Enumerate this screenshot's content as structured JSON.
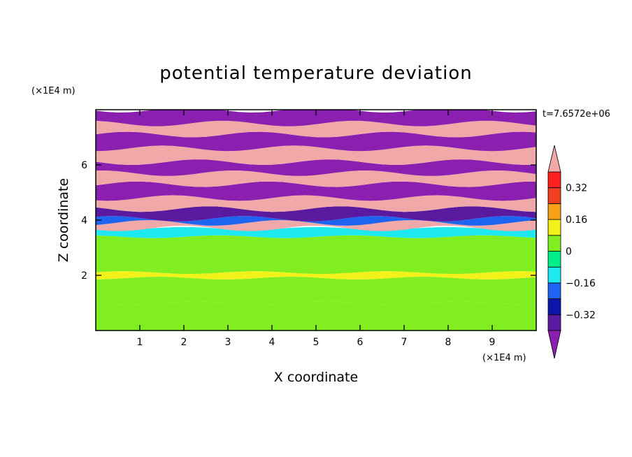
{
  "chart_data": {
    "type": "heatmap",
    "title": "potential temperature deviation",
    "xlabel": "X coordinate",
    "ylabel": "Z coordinate",
    "x_unit": "(×1E4 m)",
    "y_unit": "(×1E4 m)",
    "time_label": "t=7.6572e+06",
    "xlim": [
      0,
      10
    ],
    "ylim": [
      0,
      8
    ],
    "x_ticks": [
      1,
      2,
      3,
      4,
      5,
      6,
      7,
      8,
      9
    ],
    "y_ticks": [
      2,
      4,
      6
    ],
    "colorbar": {
      "levels": [
        -0.4,
        -0.32,
        -0.24,
        -0.16,
        -0.08,
        0,
        0.08,
        0.16,
        0.24,
        0.32,
        0.4
      ],
      "labels": [
        "0.32",
        "0.16",
        "0",
        "−0.16",
        "−0.32"
      ],
      "label_values": [
        0.32,
        0.16,
        0,
        -0.16,
        -0.32
      ],
      "colors": [
        "#8a1fb0",
        "#5a1aa0",
        "#0e14a8",
        "#1e64f0",
        "#1ee8f0",
        "#00ee88",
        "#80ee20",
        "#f2f21a",
        "#f8a01a",
        "#f04020",
        "#ff2020",
        "#f0a8a8"
      ],
      "extend": "both"
    },
    "bands": [
      {
        "z": [
          0.0,
          1.0
        ],
        "value": 0.0
      },
      {
        "z": [
          1.0,
          1.9
        ],
        "value": 0.05
      },
      {
        "z": [
          1.9,
          2.1
        ],
        "value": 0.12
      },
      {
        "z": [
          2.1,
          3.4
        ],
        "value": 0.03
      },
      {
        "z": [
          3.4,
          3.7
        ],
        "value": -0.1
      },
      {
        "z": [
          3.7,
          3.9
        ],
        "value": 0.45
      },
      {
        "z": [
          3.9,
          4.05
        ],
        "value": -0.2
      },
      {
        "z": [
          4.05,
          4.4
        ],
        "value": -0.36
      },
      {
        "z": [
          4.4,
          4.8
        ],
        "value": 0.45
      },
      {
        "z": [
          4.8,
          5.3
        ],
        "value": -0.45
      },
      {
        "z": [
          5.3,
          5.7
        ],
        "value": 0.45
      },
      {
        "z": [
          5.7,
          6.1
        ],
        "value": -0.45
      },
      {
        "z": [
          6.1,
          6.6
        ],
        "value": 0.45
      },
      {
        "z": [
          6.6,
          7.1
        ],
        "value": -0.45
      },
      {
        "z": [
          7.1,
          7.5
        ],
        "value": 0.45
      },
      {
        "z": [
          7.5,
          8.0
        ],
        "value": -0.45
      }
    ]
  }
}
